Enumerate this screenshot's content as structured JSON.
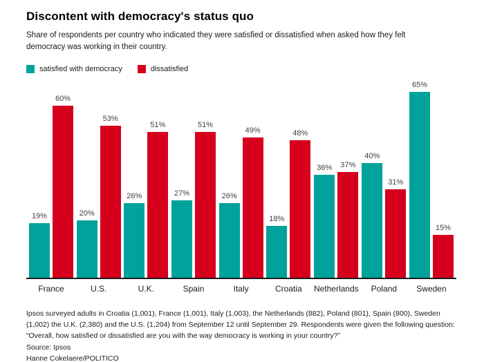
{
  "title": "Discontent with democracy's status quo",
  "subtitle": "Share of respondents per country who indicated they were satisfied or dissatisfied when asked how they felt democracy was working in their country.",
  "legend": [
    {
      "label": "satisfied with democracy",
      "color": "#00a29b"
    },
    {
      "label": "dissatisfied",
      "color": "#d6001c"
    }
  ],
  "chart_data": {
    "type": "bar",
    "categories": [
      "France",
      "U.S.",
      "U.K.",
      "Spain",
      "Italy",
      "Croatia",
      "Netherlands",
      "Poland",
      "Sweden"
    ],
    "series": [
      {
        "name": "satisfied with democracy",
        "color": "#00a29b",
        "values": [
          19,
          20,
          26,
          27,
          26,
          18,
          36,
          40,
          65
        ]
      },
      {
        "name": "dissatisfied",
        "color": "#d6001c",
        "values": [
          60,
          53,
          51,
          51,
          49,
          48,
          37,
          31,
          15
        ]
      }
    ],
    "value_suffix": "%",
    "ylim": [
      0,
      70
    ],
    "grid": false,
    "legend_position": "top"
  },
  "footer": {
    "note": "Ipsos surveyed adults in Croatia (1,001), France (1,001), Italy (1,003), the Netherlands (882), Poland (801), Spain (800), Sweden (1,002) the U.K. (2,380) and the U.S. (1,204) from September 12 until September 29. Respondents were given the following question: “Overall, how satisfied or dissatisfied are you with the way democracy is working in your country?”",
    "source": "Source: Ipsos",
    "credit": "Hanne Cokelaere/POLITICO"
  }
}
